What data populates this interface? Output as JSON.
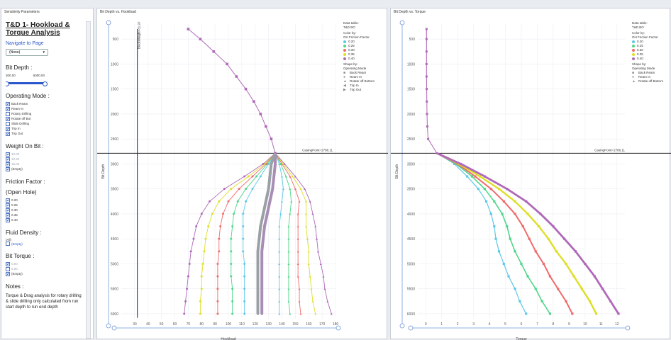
{
  "sidebar": {
    "panel_title": "Sensitivity Parameters",
    "title": "T&D 1- Hookload & Torque Analysis",
    "navigate_label": "Navigate to Page",
    "nav_select_value": "(None)",
    "bit_depth_label": "Bit Depth :",
    "bit_depth_min": "300.00",
    "bit_depth_max": "6000.00",
    "operating_mode_label": "Operating Mode :",
    "operating_modes": [
      {
        "label": "Back Ream",
        "checked": true
      },
      {
        "label": "Ream In",
        "checked": true
      },
      {
        "label": "Rotary Drilling",
        "checked": false
      },
      {
        "label": "Rotate off Bot",
        "checked": true
      },
      {
        "label": "Slide Drilling",
        "checked": false
      },
      {
        "label": "Trip In",
        "checked": true
      },
      {
        "label": "Trip Out",
        "checked": true
      }
    ],
    "wob_label": "Weight On Bit :",
    "wob_items": [
      {
        "label": "10.00",
        "checked": true,
        "grey": true
      },
      {
        "label": "12.50",
        "checked": true,
        "grey": true
      },
      {
        "label": "15.00",
        "checked": true,
        "grey": true
      },
      {
        "label": "(Empty)",
        "checked": true,
        "grey": false
      }
    ],
    "friction_label_1": "Friction Factor :",
    "friction_label_2": "(Open Hole)",
    "friction_items": [
      {
        "label": "0.20",
        "checked": true
      },
      {
        "label": "0.25",
        "checked": true
      },
      {
        "label": "0.30",
        "checked": true
      },
      {
        "label": "0.35",
        "checked": true
      },
      {
        "label": "0.40",
        "checked": true
      }
    ],
    "fluid_label": "Fluid Density :",
    "fluid_all": "(All)",
    "fluid_value": "(Empty)",
    "bit_torque_label": "Bit Torque :",
    "bit_torque_items": [
      {
        "label": "0.00",
        "checked": true,
        "grey": true
      },
      {
        "label": "5.00",
        "checked": false,
        "grey": true
      },
      {
        "label": "(Empty)",
        "checked": true,
        "grey": false
      }
    ],
    "notes_label": "Notes :",
    "notes_text": "Torque & Drag analysis for rotary drilling & slide drilling only calculated from run start depth to run end depth"
  },
  "hookload_panel": {
    "title": "Bit Depth vs. Hookload",
    "xlabel": "Hookload",
    "ylabel": "Bit Depth",
    "casing_label": "CasingPoint=2786.11",
    "blockweight_label": "BlockWeight=31.97",
    "legend": {
      "data_table_label": "Data table:",
      "data_table_value": "T&D BO",
      "color_by_label": "Color by:",
      "color_by_value": "OH Friction Factor",
      "colors": [
        {
          "label": "0.20",
          "color": "#5ec8e8"
        },
        {
          "label": "0.25",
          "color": "#4fd68a"
        },
        {
          "label": "0.30",
          "color": "#ef6b6b"
        },
        {
          "label": "0.35",
          "color": "#dede28"
        },
        {
          "label": "0.40",
          "color": "#b069b8"
        }
      ],
      "shape_by_label": "Shape by:",
      "shape_by_value": "Operating Mode",
      "shapes": [
        {
          "label": "Back Ream",
          "icon": "square-icon"
        },
        {
          "label": "Ream In",
          "icon": "circle-icon"
        },
        {
          "label": "Rotate off Bottom",
          "icon": "triangle-icon"
        },
        {
          "label": "Trip In",
          "icon": "triangle-left-icon"
        },
        {
          "label": "Trip Out",
          "icon": "triangle-right-icon"
        }
      ]
    }
  },
  "torque_panel": {
    "title": "Bit Depth vs. Torque",
    "xlabel": "Torque",
    "ylabel": "Bit Depth",
    "casing_label": "CasingPoint=2786.11",
    "legend": {
      "data_table_label": "Data table:",
      "data_table_value": "T&D BO",
      "color_by_label": "Color by:",
      "color_by_value": "OH Friction Factor",
      "colors": [
        {
          "label": "0.20",
          "color": "#5ec8e8"
        },
        {
          "label": "0.25",
          "color": "#4fd68a"
        },
        {
          "label": "0.30",
          "color": "#ef6b6b"
        },
        {
          "label": "0.35",
          "color": "#dede28"
        },
        {
          "label": "0.40",
          "color": "#b069b8"
        }
      ],
      "shape_by_label": "Shape by:",
      "shape_by_value": "Operating Mode",
      "shapes": [
        {
          "label": "Back Ream",
          "icon": "square-icon"
        },
        {
          "label": "Ream In",
          "icon": "circle-icon"
        },
        {
          "label": "Rotate off Bottom",
          "icon": "triangle-icon"
        }
      ]
    }
  },
  "chart_data": [
    {
      "type": "line",
      "xlabel": "Hookload",
      "ylabel": "Bit Depth",
      "xlim": [
        20,
        180
      ],
      "ylim": [
        6100,
        200
      ],
      "xticks": [
        30,
        40,
        50,
        60,
        70,
        80,
        90,
        100,
        110,
        120,
        130,
        140,
        150,
        160,
        170,
        180
      ],
      "yticks": [
        500,
        1000,
        1500,
        2000,
        2500,
        3000,
        3500,
        4000,
        4500,
        5000,
        5500,
        6000
      ],
      "reference_lines": {
        "casing_point_depth": 2786.11,
        "block_weight": 31.97
      },
      "depths": [
        3000,
        3250,
        3500,
        3750,
        4000,
        4250,
        4500,
        4750,
        5000,
        5250,
        5500,
        5750,
        6000
      ],
      "shared_upper": {
        "depths": [
          300,
          500,
          750,
          1000,
          1250,
          1500,
          1750,
          2000,
          2250,
          2500,
          2786
        ],
        "values": [
          70,
          79,
          89,
          99,
          106,
          113,
          119,
          124,
          128,
          132,
          135
        ]
      },
      "series": [
        {
          "name": "0.20 Trip Out",
          "values": [
            138,
            140,
            141,
            140,
            139,
            138,
            138,
            138,
            138,
            138,
            138,
            138,
            138
          ]
        },
        {
          "name": "0.25 Trip Out",
          "values": [
            139,
            143,
            146,
            147,
            146,
            145,
            145,
            145,
            145,
            145,
            145,
            145,
            146
          ]
        },
        {
          "name": "0.30 Trip Out",
          "values": [
            140,
            146,
            150,
            153,
            152,
            152,
            152,
            152,
            152,
            152,
            153,
            153,
            154
          ]
        },
        {
          "name": "0.35 Trip Out",
          "values": [
            141,
            148,
            154,
            158,
            158,
            158,
            159,
            160,
            160,
            161,
            162,
            163,
            165
          ]
        },
        {
          "name": "0.40 Trip Out",
          "values": [
            142,
            150,
            157,
            161,
            163,
            165,
            166,
            167,
            169,
            171,
            172,
            174,
            177
          ]
        },
        {
          "name": "0.20 Trip In",
          "values": [
            130,
            124,
            118,
            113,
            111,
            111,
            111,
            111,
            112,
            112,
            112,
            112,
            112
          ]
        },
        {
          "name": "0.25 Trip In",
          "values": [
            129,
            121,
            113,
            107,
            104,
            103,
            102,
            102,
            102,
            102,
            103,
            103,
            103
          ]
        },
        {
          "name": "0.30 Trip In",
          "values": [
            128,
            118,
            108,
            100,
            96,
            94,
            93,
            93,
            92,
            92,
            92,
            92,
            92
          ]
        },
        {
          "name": "0.35 Trip In",
          "values": [
            127,
            115,
            102,
            93,
            88,
            85,
            83,
            82,
            81,
            80,
            80,
            79,
            79
          ]
        },
        {
          "name": "0.40 Trip In",
          "values": [
            126,
            112,
            97,
            86,
            80,
            76,
            74,
            72,
            71,
            70,
            69,
            68,
            67
          ]
        },
        {
          "name": "Back Ream band",
          "values": [
            135,
            134,
            133,
            131,
            129,
            127,
            126,
            125,
            125,
            125,
            125,
            125,
            125
          ]
        },
        {
          "name": "Ream In band",
          "values": [
            132,
            131,
            130,
            128,
            126,
            124,
            123,
            122,
            122,
            122,
            122,
            122,
            122
          ]
        }
      ]
    },
    {
      "type": "line",
      "xlabel": "Torque",
      "ylabel": "Bit Depth",
      "xlim": [
        -0.5,
        12.5
      ],
      "ylim": [
        6100,
        200
      ],
      "xticks": [
        0,
        1,
        2,
        3,
        4,
        5,
        6,
        7,
        8,
        9,
        10,
        11,
        12
      ],
      "yticks": [
        500,
        1000,
        1500,
        2000,
        2500,
        3000,
        3500,
        4000,
        4500,
        5000,
        5500,
        6000
      ],
      "reference_lines": {
        "casing_point_depth": 2786.11
      },
      "depths": [
        3000,
        3250,
        3500,
        3750,
        4000,
        4250,
        4500,
        4750,
        5000,
        5250,
        5500,
        5750,
        6000
      ],
      "shared_upper": {
        "depths": [
          300,
          500,
          750,
          1000,
          1250,
          1500,
          1750,
          2000,
          2250,
          2500,
          2786
        ],
        "values": [
          0.05,
          0.05,
          0.05,
          0.05,
          0.05,
          0.06,
          0.07,
          0.08,
          0.1,
          0.15,
          0.7
        ]
      },
      "series": [
        {
          "name": "0.20",
          "values": [
            1.8,
            2.6,
            3.3,
            3.8,
            4.1,
            4.3,
            4.4,
            4.6,
            4.9,
            5.2,
            5.6,
            5.9,
            6.3
          ]
        },
        {
          "name": "0.25",
          "values": [
            1.9,
            2.9,
            3.7,
            4.3,
            4.8,
            5.1,
            5.3,
            5.6,
            6.0,
            6.4,
            6.9,
            7.3,
            7.8
          ]
        },
        {
          "name": "0.30",
          "values": [
            2.0,
            3.1,
            4.1,
            4.9,
            5.6,
            6.1,
            6.5,
            6.9,
            7.4,
            7.8,
            8.3,
            8.8,
            9.2
          ]
        },
        {
          "name": "0.35",
          "values": [
            2.1,
            3.4,
            4.6,
            5.6,
            6.4,
            7.1,
            7.7,
            8.2,
            8.8,
            9.3,
            9.8,
            10.3,
            10.7
          ]
        },
        {
          "name": "0.40",
          "values": [
            2.2,
            3.7,
            5.1,
            6.3,
            7.2,
            8.0,
            8.7,
            9.4,
            10.0,
            10.6,
            11.1,
            11.6,
            12.1
          ]
        }
      ]
    }
  ]
}
